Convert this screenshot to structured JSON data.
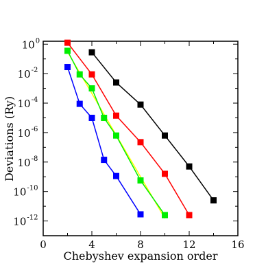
{
  "chart_data": {
    "type": "line",
    "xlabel": "Chebyshev expansion order",
    "ylabel": "Deviations (Ry)",
    "xlim": [
      0,
      16
    ],
    "ylim_log10": [
      -13,
      0.2
    ],
    "y_scale": "log",
    "grid": false,
    "x_ticks": [
      0,
      4,
      8,
      12,
      16
    ],
    "y_ticks": [
      {
        "base": "10",
        "exp": "0",
        "value_log10": 0
      },
      {
        "base": "10",
        "exp": "-2",
        "value_log10": -2
      },
      {
        "base": "10",
        "exp": "-4",
        "value_log10": -4
      },
      {
        "base": "10",
        "exp": "-6",
        "value_log10": -6
      },
      {
        "base": "10",
        "exp": "-8",
        "value_log10": -8
      },
      {
        "base": "10",
        "exp": "-10",
        "value_log10": -10
      },
      {
        "base": "10",
        "exp": "-12",
        "value_log10": -12
      }
    ],
    "series": [
      {
        "color": "#000000",
        "x": [
          4,
          6,
          8,
          10,
          12,
          14
        ],
        "y_log10": [
          -0.55,
          -2.6,
          -4.1,
          -6.2,
          -8.3,
          -10.6
        ]
      },
      {
        "color": "#ff0000",
        "x": [
          2,
          4,
          6,
          8,
          10,
          12
        ],
        "y_log10": [
          0.1,
          -2.05,
          -4.85,
          -6.65,
          -8.8,
          -11.6
        ]
      },
      {
        "color": "#00ee00",
        "x": [
          2,
          3,
          4,
          5,
          6,
          8,
          10
        ],
        "y_log10": [
          -0.45,
          -2.05,
          -3.0,
          -5.0,
          -6.2,
          -9.25,
          -11.6
        ],
        "fit_line_color": "#ffff00"
      },
      {
        "color": "#0000ff",
        "x": [
          2,
          3,
          4,
          5,
          6,
          8
        ],
        "y_log10": [
          -1.55,
          -4.05,
          -5.0,
          -7.85,
          -8.95,
          -11.55
        ]
      }
    ]
  }
}
